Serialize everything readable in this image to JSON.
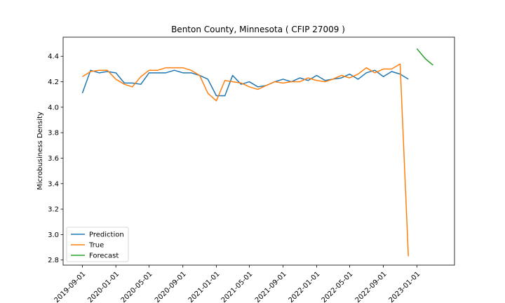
{
  "chart_data": {
    "type": "line",
    "title": "Benton County, Minnesota ( CFIP 27009 )",
    "xlabel": "",
    "ylabel": "Microbusiness Density",
    "x_tick_labels": [
      "2019-09-01",
      "2020-01-01",
      "2020-05-01",
      "2020-09-01",
      "2021-01-01",
      "2021-05-01",
      "2021-09-01",
      "2022-01-01",
      "2022-05-01",
      "2022-09-01",
      "2023-01-01"
    ],
    "y_ticks": [
      2.8,
      3.0,
      3.2,
      3.4,
      3.6,
      3.8,
      4.0,
      4.2,
      4.4
    ],
    "y_tick_labels": [
      "2.8",
      "3.0",
      "3.2",
      "3.4",
      "3.6",
      "3.8",
      "4.0",
      "4.2",
      "4.4"
    ],
    "ylim": [
      2.76,
      4.55
    ],
    "xlim": [
      "2019-06-23",
      "2023-05-18"
    ],
    "grid": false,
    "legend_position": "lower-left",
    "colors": {
      "Prediction": "#1f77b4",
      "True": "#ff7f0e",
      "Forecast": "#2ca02c"
    },
    "series": [
      {
        "name": "Prediction",
        "x": [
          "2019-09-01",
          "2019-10-01",
          "2019-11-01",
          "2019-12-01",
          "2020-01-01",
          "2020-02-01",
          "2020-03-01",
          "2020-04-01",
          "2020-05-01",
          "2020-06-01",
          "2020-07-01",
          "2020-08-01",
          "2020-09-01",
          "2020-10-01",
          "2020-11-01",
          "2020-12-01",
          "2021-01-01",
          "2021-02-01",
          "2021-03-01",
          "2021-04-01",
          "2021-05-01",
          "2021-06-01",
          "2021-07-01",
          "2021-08-01",
          "2021-09-01",
          "2021-10-01",
          "2021-11-01",
          "2021-12-01",
          "2022-01-01",
          "2022-02-01",
          "2022-03-01",
          "2022-04-01",
          "2022-05-01",
          "2022-06-01",
          "2022-07-01",
          "2022-08-01",
          "2022-09-01",
          "2022-10-01",
          "2022-11-01",
          "2022-12-01"
        ],
        "values": [
          4.11,
          4.29,
          4.27,
          4.28,
          4.27,
          4.19,
          4.19,
          4.18,
          4.27,
          4.27,
          4.27,
          4.29,
          4.27,
          4.27,
          4.25,
          4.22,
          4.09,
          4.09,
          4.25,
          4.18,
          4.2,
          4.16,
          4.17,
          4.2,
          4.22,
          4.2,
          4.23,
          4.21,
          4.25,
          4.21,
          4.22,
          4.23,
          4.26,
          4.22,
          4.27,
          4.29,
          4.24,
          4.28,
          4.26,
          4.22
        ]
      },
      {
        "name": "True",
        "x": [
          "2019-09-01",
          "2019-10-01",
          "2019-11-01",
          "2019-12-01",
          "2020-01-01",
          "2020-02-01",
          "2020-03-01",
          "2020-04-01",
          "2020-05-01",
          "2020-06-01",
          "2020-07-01",
          "2020-08-01",
          "2020-09-01",
          "2020-10-01",
          "2020-11-01",
          "2020-12-01",
          "2021-01-01",
          "2021-02-01",
          "2021-03-01",
          "2021-04-01",
          "2021-05-01",
          "2021-06-01",
          "2021-07-01",
          "2021-08-01",
          "2021-09-01",
          "2021-10-01",
          "2021-11-01",
          "2021-12-01",
          "2022-01-01",
          "2022-02-01",
          "2022-03-01",
          "2022-04-01",
          "2022-05-01",
          "2022-06-01",
          "2022-07-01",
          "2022-08-01",
          "2022-09-01",
          "2022-10-01",
          "2022-11-01",
          "2022-12-01"
        ],
        "values": [
          4.24,
          4.28,
          4.29,
          4.29,
          4.22,
          4.18,
          4.16,
          4.24,
          4.29,
          4.29,
          4.31,
          4.31,
          4.31,
          4.29,
          4.25,
          4.11,
          4.05,
          4.21,
          4.2,
          4.19,
          4.16,
          4.14,
          4.17,
          4.2,
          4.19,
          4.2,
          4.2,
          4.23,
          4.21,
          4.2,
          4.22,
          4.25,
          4.23,
          4.26,
          4.31,
          4.27,
          4.3,
          4.3,
          4.34,
          2.83
        ]
      },
      {
        "name": "Forecast",
        "x": [
          "2023-01-01",
          "2023-02-01",
          "2023-03-01"
        ],
        "values": [
          4.46,
          4.38,
          4.33
        ]
      }
    ]
  }
}
